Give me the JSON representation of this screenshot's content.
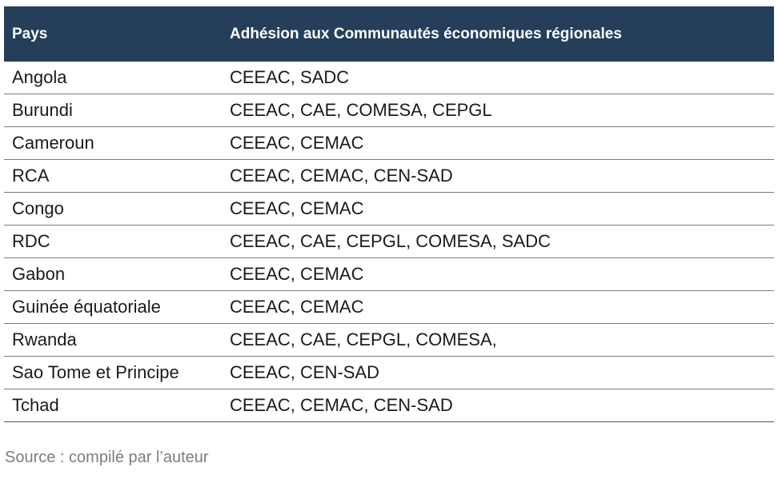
{
  "table": {
    "headers": [
      "Pays",
      "Adhésion aux Communautés économiques régionales"
    ],
    "rows": [
      [
        "Angola",
        "CEEAC, SADC"
      ],
      [
        "Burundi",
        "CEEAC, CAE, COMESA, CEPGL"
      ],
      [
        "Cameroun",
        "CEEAC, CEMAC"
      ],
      [
        "RCA",
        "CEEAC, CEMAC, CEN-SAD"
      ],
      [
        "Congo",
        "CEEAC, CEMAC"
      ],
      [
        "RDC",
        "CEEAC, CAE, CEPGL, COMESA, SADC"
      ],
      [
        "Gabon",
        "CEEAC, CEMAC"
      ],
      [
        "Guinée équatoriale",
        "CEEAC, CEMAC"
      ],
      [
        "Rwanda",
        "CEEAC, CAE, CEPGL, COMESA,"
      ],
      [
        "Sao Tome et Principe",
        "CEEAC, CEN-SAD"
      ],
      [
        "Tchad",
        "CEEAC, CEMAC, CEN-SAD"
      ]
    ]
  },
  "source": "Source : compilé par l’auteur",
  "colors": {
    "header_bg": "#253f5b",
    "header_text": "#ffffff",
    "source_text": "#7d7d7d"
  }
}
